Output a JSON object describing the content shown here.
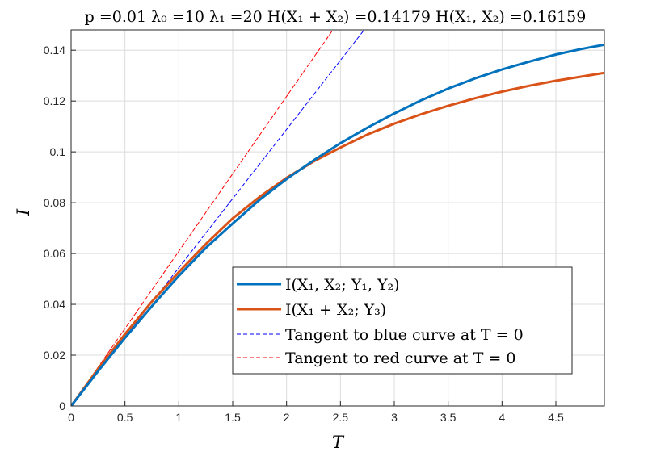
{
  "chart_data": {
    "type": "line",
    "title": "p =0.01    λ₀ =10    λ₁ =20    H(X₁ + X₂) =0.14179    H(X₁, X₂) =0.16159",
    "xlabel": "T",
    "ylabel": "I",
    "xlim": [
      0,
      4.95
    ],
    "ylim": [
      0,
      0.148
    ],
    "x_ticks": [
      "0",
      "0.5",
      "1",
      "1.5",
      "2",
      "2.5",
      "3",
      "3.5",
      "4",
      "4.5"
    ],
    "y_ticks": [
      "0",
      "0.02",
      "0.04",
      "0.06",
      "0.08",
      "0.1",
      "0.12",
      "0.14"
    ],
    "grid": true,
    "legend_position": "lower-right",
    "series": [
      {
        "name": "I(X₁, X₂; Y₁, Y₂)",
        "color": "#0072BD",
        "style": "solid",
        "x": [
          0,
          0.25,
          0.5,
          0.75,
          1,
          1.25,
          1.5,
          1.75,
          2,
          2.25,
          2.5,
          2.75,
          3,
          3.25,
          3.5,
          3.75,
          4,
          4.25,
          4.5,
          4.75,
          4.95
        ],
        "y": [
          0,
          0.0137,
          0.0268,
          0.0393,
          0.0512,
          0.0622,
          0.0718,
          0.0811,
          0.0893,
          0.0966,
          0.1034,
          0.1095,
          0.1151,
          0.1203,
          0.1249,
          0.1289,
          0.1324,
          0.1355,
          0.1383,
          0.1406,
          0.1422
        ]
      },
      {
        "name": "I(X₁ + X₂; Y₃)",
        "color": "#D95319",
        "style": "solid",
        "x": [
          0,
          0.25,
          0.5,
          0.75,
          1,
          1.25,
          1.5,
          1.75,
          2,
          2.25,
          2.5,
          2.75,
          3,
          3.25,
          3.5,
          3.75,
          4,
          4.25,
          4.5,
          4.75,
          4.95
        ],
        "y": [
          0,
          0.0146,
          0.0283,
          0.0411,
          0.0527,
          0.0637,
          0.0738,
          0.0823,
          0.0898,
          0.0962,
          0.1017,
          0.1068,
          0.1111,
          0.1148,
          0.1181,
          0.1211,
          0.1237,
          0.126,
          0.128,
          0.1297,
          0.1311
        ]
      },
      {
        "name": "Tangent to blue curve at T = 0",
        "color": "#0000FF",
        "style": "dashed",
        "x": [
          0,
          2.72
        ],
        "y": [
          0,
          0.148
        ]
      },
      {
        "name": "Tangent to red curve at T = 0",
        "color": "#FF0000",
        "style": "dashed",
        "x": [
          0,
          2.43
        ],
        "y": [
          0,
          0.148
        ]
      }
    ]
  }
}
